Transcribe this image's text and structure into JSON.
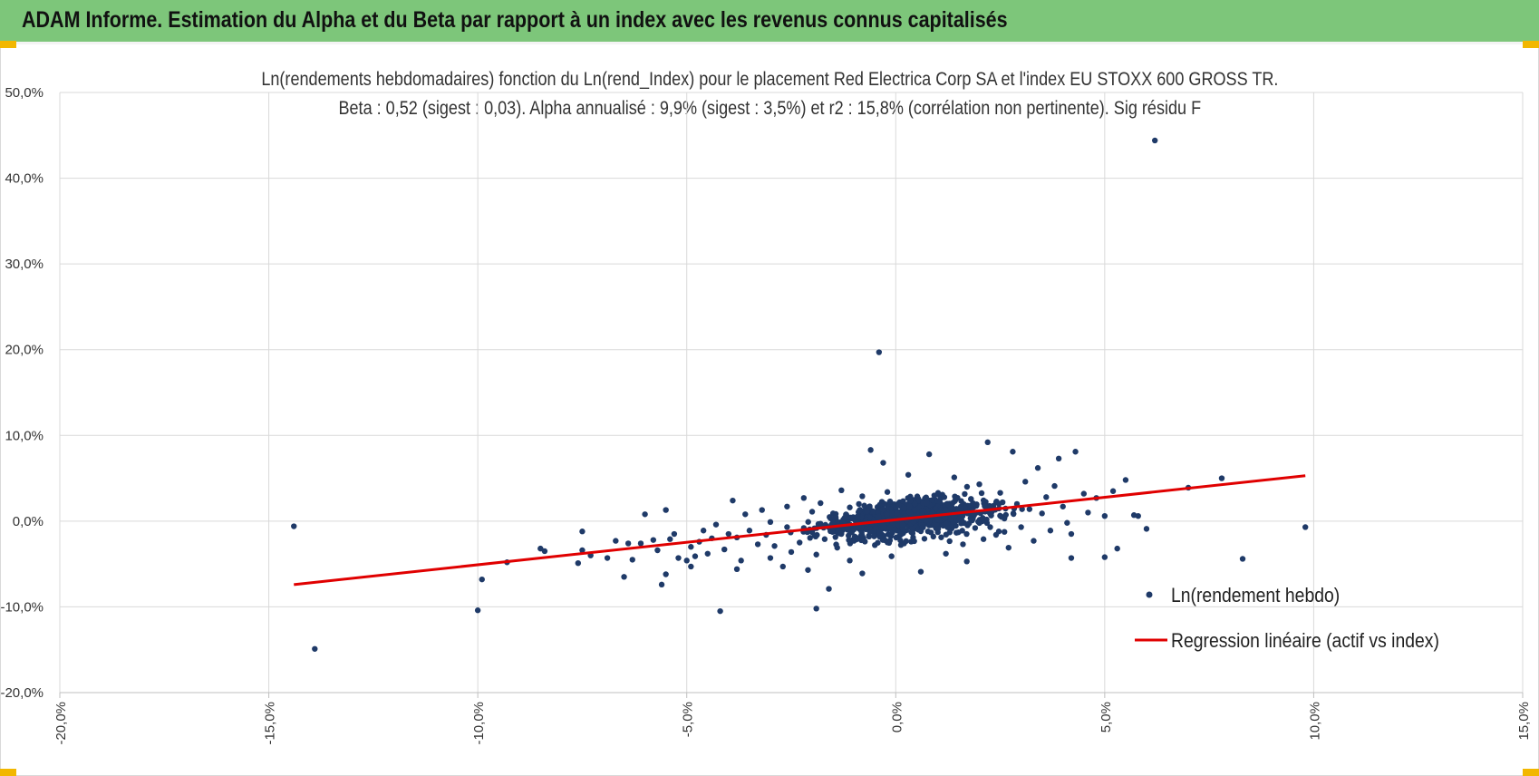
{
  "header": {
    "title": "ADAM Informe. Estimation du Alpha et du Beta par rapport à un index avec les revenus connus capitalisés"
  },
  "colors": {
    "header_bg": "#7dc67a",
    "accent": "#f2b700",
    "points": "#1f3a68",
    "regression": "#e00000",
    "grid": "#d9d9d9"
  },
  "chart_data": {
    "type": "scatter",
    "title_line1": "Ln(rendements hebdomadaires) fonction du Ln(rend_Index) pour le placement Red Electrica Corp SA et l'index EU STOXX 600 GROSS TR.",
    "title_line2": "Beta : 0,52 (sigest : 0,03). Alpha annualisé : 9,9% (sigest : 3,5%) et r2 : 15,8% (corrélation non pertinente). Sig résidu F",
    "xlim": [
      -20,
      15
    ],
    "ylim": [
      -20,
      50
    ],
    "x_ticks": [
      -20,
      -15,
      -10,
      -5,
      0,
      5,
      10,
      15
    ],
    "y_ticks": [
      -20,
      -10,
      0,
      10,
      20,
      30,
      40,
      50
    ],
    "x_tick_labels": [
      "-20,0%",
      "-15,0%",
      "-10,0%",
      "-5,0%",
      "0,0%",
      "5,0%",
      "10,0%",
      "15,0%"
    ],
    "y_tick_labels": [
      "-20,0%",
      "-10,0%",
      "0,0%",
      "10,0%",
      "20,0%",
      "30,0%",
      "40,0%",
      "50,0%"
    ],
    "grid": true,
    "legend_position": "bottom-right",
    "series": [
      {
        "name": "Ln(rendement hebdo)",
        "kind": "scatter",
        "points": [
          [
            -14.4,
            -0.6
          ],
          [
            -13.9,
            -14.9
          ],
          [
            -10.0,
            -10.4
          ],
          [
            -9.9,
            -6.8
          ],
          [
            -9.3,
            -4.8
          ],
          [
            -8.5,
            -3.2
          ],
          [
            -8.4,
            -3.5
          ],
          [
            -7.6,
            -4.9
          ],
          [
            -7.5,
            -1.2
          ],
          [
            -7.5,
            -3.4
          ],
          [
            -7.3,
            -4.0
          ],
          [
            -6.9,
            -4.3
          ],
          [
            -6.7,
            -2.3
          ],
          [
            -6.5,
            -6.5
          ],
          [
            -6.4,
            -2.6
          ],
          [
            -6.3,
            -4.5
          ],
          [
            -6.1,
            -2.6
          ],
          [
            -6.0,
            0.8
          ],
          [
            -5.8,
            -2.2
          ],
          [
            -5.7,
            -3.4
          ],
          [
            -5.6,
            -7.4
          ],
          [
            -5.5,
            -6.2
          ],
          [
            -5.5,
            1.3
          ],
          [
            -5.4,
            -2.1
          ],
          [
            -5.3,
            -1.5
          ],
          [
            -5.2,
            -4.3
          ],
          [
            -5.0,
            -4.6
          ],
          [
            -4.9,
            -3.0
          ],
          [
            -4.9,
            -5.3
          ],
          [
            -4.8,
            -4.1
          ],
          [
            -4.7,
            -2.4
          ],
          [
            -4.6,
            -1.1
          ],
          [
            -4.5,
            -3.8
          ],
          [
            -4.4,
            -2.0
          ],
          [
            -4.3,
            -0.4
          ],
          [
            -4.2,
            -10.5
          ],
          [
            -4.1,
            -3.3
          ],
          [
            -4.0,
            -1.5
          ],
          [
            -3.9,
            2.4
          ],
          [
            -3.8,
            -1.9
          ],
          [
            -3.8,
            -5.6
          ],
          [
            -3.7,
            -4.6
          ],
          [
            -3.6,
            0.8
          ],
          [
            -3.5,
            -1.1
          ],
          [
            -3.3,
            -2.7
          ],
          [
            -3.2,
            1.3
          ],
          [
            -3.1,
            -1.6
          ],
          [
            -3.0,
            -4.3
          ],
          [
            -3.0,
            -0.1
          ],
          [
            -2.9,
            -2.9
          ],
          [
            -2.7,
            -5.3
          ],
          [
            -2.6,
            1.7
          ],
          [
            -2.6,
            -0.7
          ],
          [
            -2.5,
            -3.6
          ],
          [
            -2.3,
            -2.5
          ],
          [
            -2.2,
            2.7
          ],
          [
            -2.2,
            -0.8
          ],
          [
            -2.1,
            -5.7
          ],
          [
            -2.0,
            -1.3
          ],
          [
            -2.0,
            1.1
          ],
          [
            -1.9,
            -3.9
          ],
          [
            -1.8,
            -0.3
          ],
          [
            -1.8,
            2.1
          ],
          [
            -1.7,
            -2.1
          ],
          [
            -1.6,
            -7.9
          ],
          [
            -1.9,
            -10.2
          ],
          [
            -1.5,
            -1.1
          ],
          [
            -1.5,
            0.9
          ],
          [
            -1.4,
            -3.1
          ],
          [
            -1.3,
            3.6
          ],
          [
            -1.3,
            -1.5
          ],
          [
            -1.2,
            -0.2
          ],
          [
            -1.1,
            -4.6
          ],
          [
            -1.1,
            1.6
          ],
          [
            -1.0,
            -2.3
          ],
          [
            -0.9,
            0.5
          ],
          [
            -0.8,
            -6.1
          ],
          [
            -0.8,
            2.9
          ],
          [
            -0.7,
            -0.9
          ],
          [
            -0.6,
            8.3
          ],
          [
            -0.5,
            -2.8
          ],
          [
            -0.4,
            19.7
          ],
          [
            -0.4,
            1.2
          ],
          [
            -0.3,
            6.8
          ],
          [
            -0.3,
            -1.7
          ],
          [
            -0.2,
            3.4
          ],
          [
            -0.1,
            -4.1
          ],
          [
            0.0,
            0.4
          ],
          [
            0.1,
            -0.6
          ],
          [
            0.1,
            2.2
          ],
          [
            0.2,
            -2.6
          ],
          [
            0.3,
            5.4
          ],
          [
            0.4,
            -1.0
          ],
          [
            0.5,
            1.5
          ],
          [
            0.6,
            -5.9
          ],
          [
            0.7,
            0.8
          ],
          [
            0.8,
            7.8
          ],
          [
            0.9,
            -1.8
          ],
          [
            1.0,
            3.1
          ],
          [
            1.1,
            -0.4
          ],
          [
            1.2,
            -3.8
          ],
          [
            1.3,
            1.9
          ],
          [
            1.4,
            5.1
          ],
          [
            1.5,
            -1.3
          ],
          [
            1.6,
            0.6
          ],
          [
            1.7,
            -4.7
          ],
          [
            1.8,
            2.6
          ],
          [
            1.9,
            -0.8
          ],
          [
            2.0,
            4.3
          ],
          [
            2.1,
            -2.1
          ],
          [
            2.2,
            9.2
          ],
          [
            2.3,
            1.1
          ],
          [
            2.4,
            -1.6
          ],
          [
            2.5,
            3.3
          ],
          [
            2.6,
            0.3
          ],
          [
            2.7,
            -3.1
          ],
          [
            2.8,
            8.1
          ],
          [
            2.9,
            2.0
          ],
          [
            3.0,
            -0.7
          ],
          [
            3.1,
            4.6
          ],
          [
            3.2,
            1.4
          ],
          [
            3.3,
            -2.3
          ],
          [
            3.4,
            6.2
          ],
          [
            3.5,
            0.9
          ],
          [
            3.6,
            2.8
          ],
          [
            3.7,
            -1.1
          ],
          [
            3.8,
            4.1
          ],
          [
            3.9,
            7.3
          ],
          [
            4.0,
            1.7
          ],
          [
            4.1,
            -0.2
          ],
          [
            4.2,
            -1.5
          ],
          [
            4.3,
            8.1
          ],
          [
            4.2,
            -4.3
          ],
          [
            4.5,
            3.2
          ],
          [
            4.6,
            1.0
          ],
          [
            4.8,
            2.7
          ],
          [
            5.0,
            -4.2
          ],
          [
            5.0,
            0.6
          ],
          [
            5.2,
            3.5
          ],
          [
            5.3,
            -3.2
          ],
          [
            5.5,
            4.8
          ],
          [
            5.7,
            0.7
          ],
          [
            5.8,
            0.6
          ],
          [
            6.0,
            -0.9
          ],
          [
            6.2,
            44.4
          ],
          [
            7.0,
            3.9
          ],
          [
            7.8,
            5.0
          ],
          [
            8.3,
            -4.4
          ],
          [
            9.8,
            -0.7
          ]
        ]
      },
      {
        "name": "Regression linéaire (actif vs index)",
        "kind": "line",
        "points": [
          [
            -14.4,
            -7.4
          ],
          [
            9.8,
            5.3
          ]
        ]
      }
    ]
  }
}
